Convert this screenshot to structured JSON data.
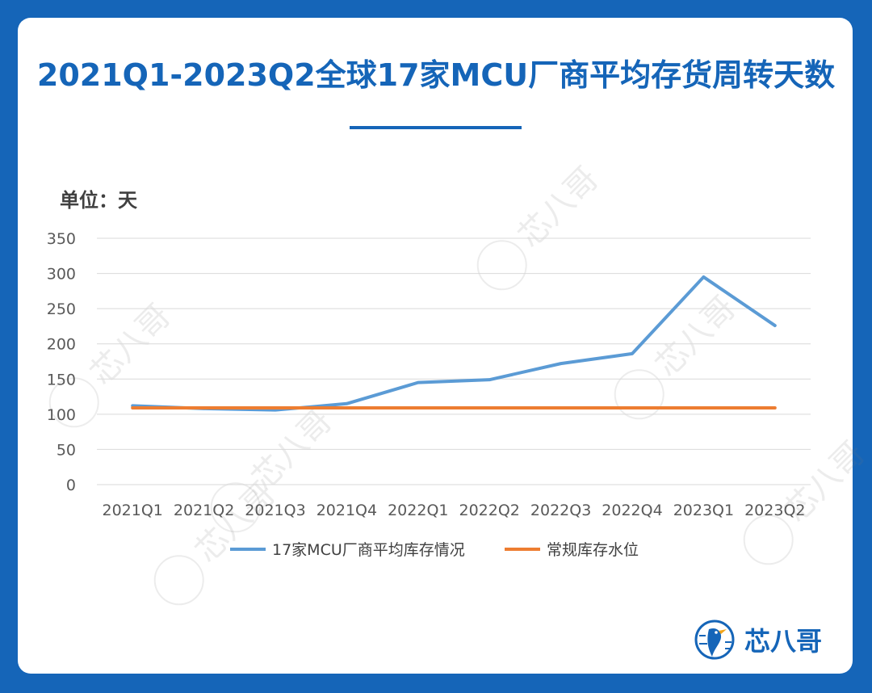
{
  "title": "2021Q1-2023Q2全球17家MCU厂商平均存货周转天数",
  "unit_label": "单位：天",
  "brand": {
    "name": "芯八哥",
    "color": "#1565b8"
  },
  "watermark": "芯八哥",
  "chart_data": {
    "type": "line",
    "title": "2021Q1-2023Q2全球17家MCU厂商平均存货周转天数",
    "ylabel": "单位：天",
    "categories": [
      "2021Q1",
      "2021Q2",
      "2021Q3",
      "2021Q4",
      "2022Q1",
      "2022Q2",
      "2022Q3",
      "2022Q4",
      "2023Q1",
      "2023Q2"
    ],
    "yticks": [
      "0",
      "50",
      "100",
      "150",
      "200",
      "250",
      "300",
      "350"
    ],
    "ylim": [
      0,
      350
    ],
    "grid": true,
    "legend_position": "bottom",
    "series": [
      {
        "name": "17家MCU厂商平均库存情况",
        "color": "#5b9bd5",
        "values": [
          112,
          108,
          106,
          115,
          145,
          149,
          172,
          186,
          295,
          226
        ]
      },
      {
        "name": "常规库存水位",
        "color": "#ed7d31",
        "values": [
          109,
          109,
          109,
          109,
          109,
          109,
          109,
          109,
          109,
          109
        ]
      }
    ]
  }
}
